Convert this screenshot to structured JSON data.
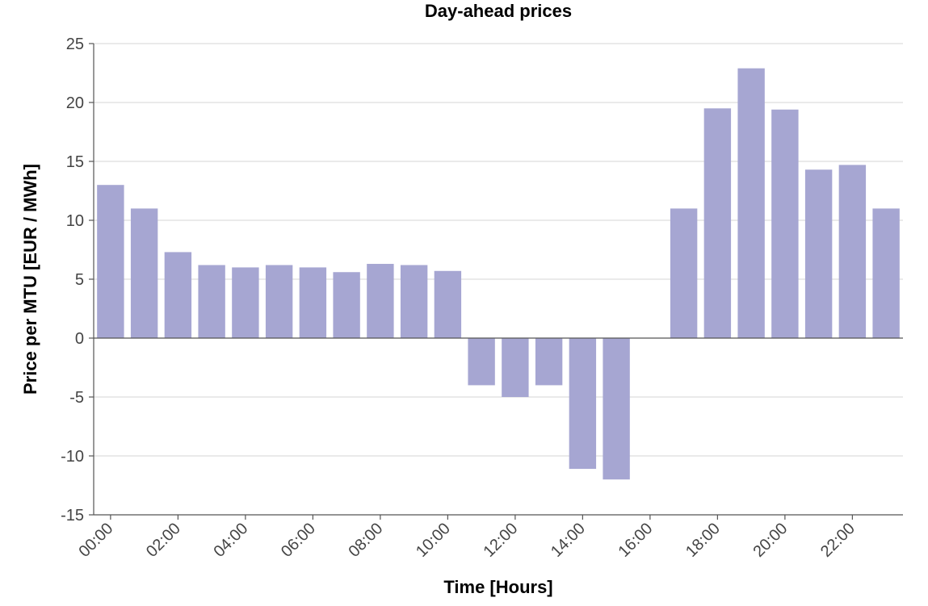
{
  "chart_data": {
    "type": "bar",
    "title": "Day-ahead prices",
    "xlabel": "Time [Hours]",
    "ylabel": "Price per MTU [EUR / MWh]",
    "ylim": [
      -15,
      25
    ],
    "yticks": [
      -15,
      -10,
      -5,
      0,
      5,
      10,
      15,
      20,
      25
    ],
    "grid": true,
    "bar_color": "#a6a6d2",
    "categories": [
      "00:00",
      "01:00",
      "02:00",
      "03:00",
      "04:00",
      "05:00",
      "06:00",
      "07:00",
      "08:00",
      "09:00",
      "10:00",
      "11:00",
      "12:00",
      "13:00",
      "14:00",
      "15:00",
      "16:00",
      "17:00",
      "18:00",
      "19:00",
      "20:00",
      "21:00",
      "22:00",
      "23:00"
    ],
    "tick_labels": [
      "00:00",
      "02:00",
      "04:00",
      "06:00",
      "08:00",
      "10:00",
      "12:00",
      "14:00",
      "16:00",
      "18:00",
      "20:00",
      "22:00"
    ],
    "values": [
      13.0,
      11.0,
      7.3,
      6.2,
      6.0,
      6.2,
      6.0,
      5.6,
      6.3,
      6.2,
      5.7,
      -4.0,
      -5.0,
      -4.0,
      -11.1,
      -12.0,
      0.0,
      11.0,
      19.5,
      22.9,
      19.4,
      14.3,
      14.7,
      11.0
    ]
  }
}
